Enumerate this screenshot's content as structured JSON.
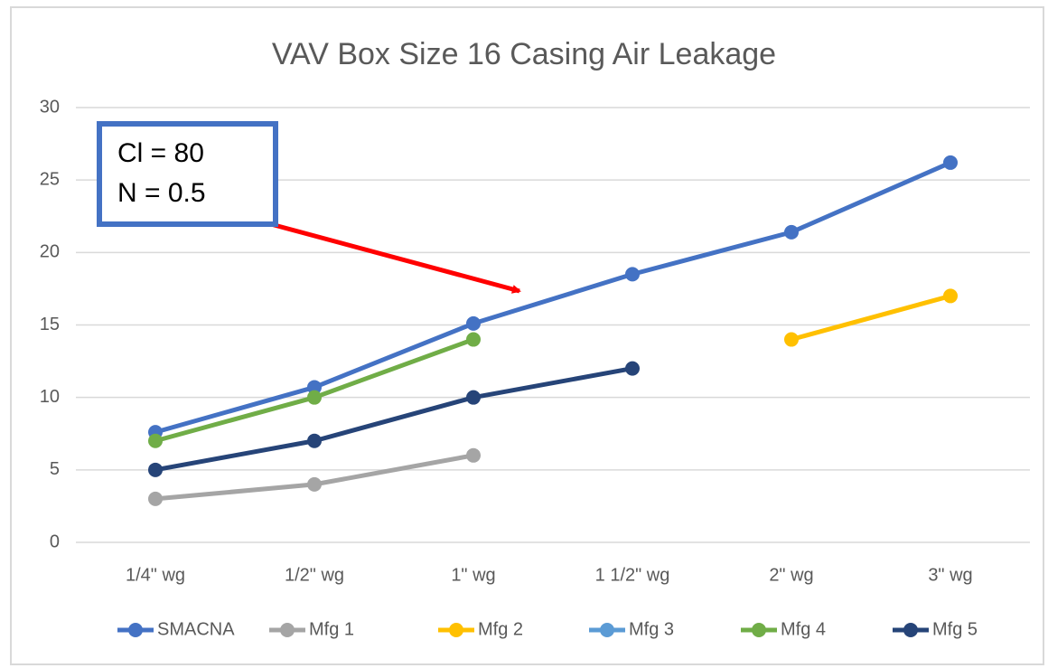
{
  "chart_data": {
    "type": "line",
    "title": "VAV Box Size 16 Casing Air Leakage",
    "categories": [
      "1/4\" wg",
      "1/2\" wg",
      "1\" wg",
      "1 1/2\" wg",
      "2\" wg",
      "3\" wg"
    ],
    "series": [
      {
        "name": "SMACNA",
        "color": "#4472c4",
        "values": [
          7.6,
          10.7,
          15.1,
          18.5,
          21.4,
          26.2
        ]
      },
      {
        "name": "Mfg 1",
        "color": "#a5a5a5",
        "values": [
          3,
          4,
          6,
          null,
          null,
          null
        ]
      },
      {
        "name": "Mfg 2",
        "color": "#ffc000",
        "values": [
          null,
          null,
          null,
          null,
          14,
          17
        ]
      },
      {
        "name": "Mfg 3",
        "color": "#5b9bd5",
        "values": [
          null,
          null,
          null,
          null,
          null,
          null
        ]
      },
      {
        "name": "Mfg 4",
        "color": "#70ad47",
        "values": [
          7,
          10,
          14,
          null,
          null,
          null
        ]
      },
      {
        "name": "Mfg 5",
        "color": "#264478",
        "values": [
          5,
          7,
          10,
          12,
          null,
          null
        ]
      }
    ],
    "ylim": [
      0,
      30
    ],
    "yticks": [
      0,
      5,
      10,
      15,
      20,
      25,
      30
    ],
    "grid": true,
    "legend": "bottom",
    "annotations": [
      "Cl = 80",
      "N = 0.5"
    ]
  }
}
